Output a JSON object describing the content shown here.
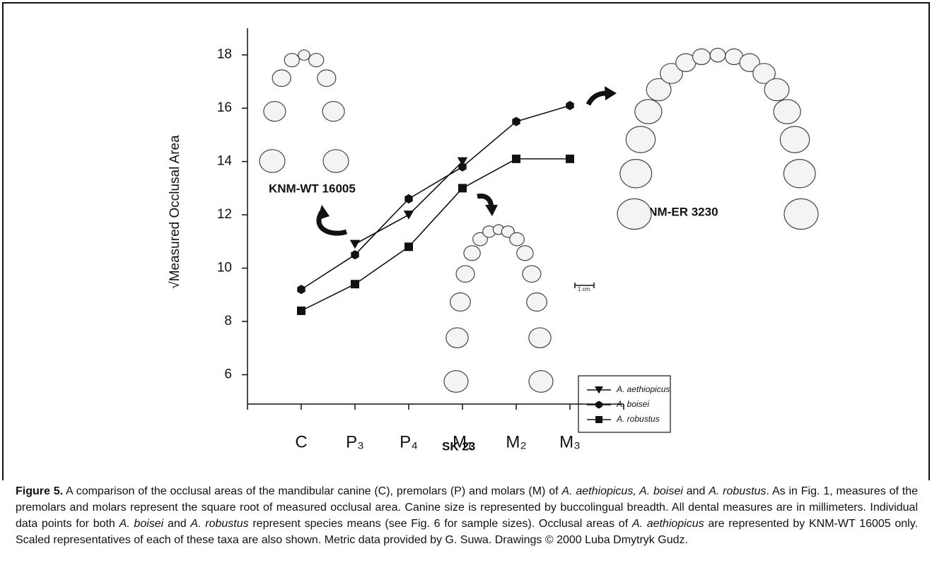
{
  "chart_data": {
    "type": "line",
    "y_label": "√Measured Occlusal Area",
    "categories": [
      "C",
      "P₃",
      "P₄",
      "M₁",
      "M₂",
      "M₃"
    ],
    "series": [
      {
        "name": "A. aethiopicus",
        "color": "#111111",
        "marker": "triangle-down",
        "values": [
          null,
          10.9,
          12.0,
          14.0,
          null,
          null
        ]
      },
      {
        "name": "A. boisei",
        "color": "#111111",
        "marker": "hexagon",
        "values": [
          9.2,
          10.5,
          12.6,
          13.8,
          15.5,
          16.1
        ]
      },
      {
        "name": "A. robustus",
        "color": "#111111",
        "marker": "square",
        "values": [
          8.4,
          9.4,
          10.8,
          13.0,
          14.1,
          14.1
        ]
      }
    ],
    "ylim": [
      4.9,
      19
    ],
    "yticks": [
      6,
      8,
      10,
      12,
      14,
      16,
      18
    ],
    "grid": false,
    "legend": "lower-right",
    "annotations": [
      "KNM-WT 16005",
      "KNM-ER 3230",
      "SK 23",
      "1 cm"
    ],
    "caption": {
      "label": "Figure 5.",
      "parts": [
        {
          "text": " A comparison of the occlusal areas of the mandibular canine (C), premolars (P) and molars (M) of ",
          "style": "normal"
        },
        {
          "text": "A. aethiopicus, A. boisei",
          "style": "italic"
        },
        {
          "text": " and ",
          "style": "normal"
        },
        {
          "text": "A. robustus",
          "style": "italic"
        },
        {
          "text": ". As in Fig. 1, measures of the premolars and molars represent the square root of measured occlusal area. Canine size is represented by buccolingual breadth. All dental measures are in millimeters. Individual data points for both ",
          "style": "normal"
        },
        {
          "text": "A. boisei",
          "style": "italic"
        },
        {
          "text": " and ",
          "style": "normal"
        },
        {
          "text": "A. robustus",
          "style": "italic"
        },
        {
          "text": " represent species means (see Fig. 6 for sample sizes). Occlusal areas of ",
          "style": "normal"
        },
        {
          "text": "A. aethiopicus",
          "style": "italic"
        },
        {
          "text": " are represented by KNM-WT 16005 only. Scaled representatives of each of these taxa are also shown. Metric data provided by G. Suwa. Drawings © 2000 Luba Dmytryk Gudz.",
          "style": "normal"
        }
      ]
    }
  }
}
